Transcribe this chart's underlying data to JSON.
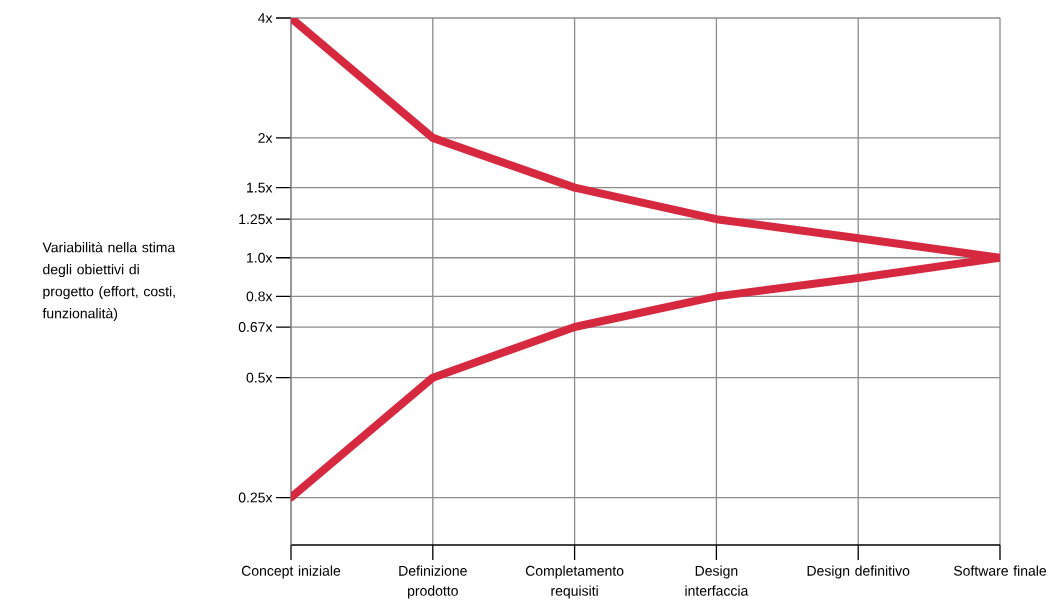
{
  "chart_data": {
    "type": "line",
    "ylabel": "Variabilità nella stima degli obiettivi di progetto (effort, costi, funzionalità)",
    "categories": [
      "Concept iniziale",
      "Definizione prodotto",
      "Completamento requisiti",
      "Design interfaccia",
      "Design definitivo",
      "Software finale"
    ],
    "series": [
      {
        "color": "#d62940",
        "values": [
          4,
          2,
          1.5,
          1.25,
          1.12,
          1.0
        ]
      },
      {
        "color": "#d62940",
        "values": [
          0.25,
          0.5,
          0.67,
          0.8,
          0.89,
          1.0
        ]
      }
    ],
    "log": "y",
    "ylim": [
      0.19,
      4
    ],
    "yticks": [
      {
        "value": 0.25,
        "label": "0.25x"
      },
      {
        "value": 0.5,
        "label": "0.5x"
      },
      {
        "value": 0.67,
        "label": "0.67x"
      },
      {
        "value": 0.8,
        "label": "0.8x"
      },
      {
        "value": 1.0,
        "label": "1.0x"
      },
      {
        "value": 1.25,
        "label": "1.25x"
      },
      {
        "value": 1.5,
        "label": "1.5x"
      },
      {
        "value": 2,
        "label": "2x"
      },
      {
        "value": 4,
        "label": "4x"
      }
    ],
    "grid": true
  }
}
